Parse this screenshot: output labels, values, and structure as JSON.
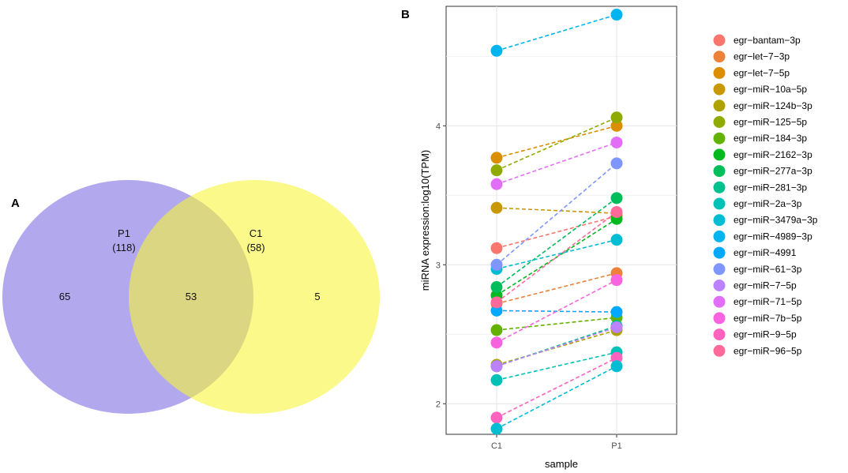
{
  "venn": {
    "panel_label": "A",
    "left_set": {
      "name": "P1",
      "total": "(118)",
      "only": "65",
      "color": "#9b8fe8"
    },
    "right_set": {
      "name": "C1",
      "total": "(58)",
      "only": "5",
      "color": "#f7f53a"
    },
    "overlap": "53"
  },
  "chart_data": {
    "type": "line",
    "panel_label": "B",
    "xlabel": "sample",
    "ylabel": "miRNA expression:log10(TPM)",
    "categories": [
      "C1",
      "P1"
    ],
    "ylim": [
      1.78,
      4.86
    ],
    "yticks": [
      "2",
      "3",
      "4"
    ],
    "grid": true,
    "legend_position": "right",
    "series": [
      {
        "name": "egr−bantam−3p",
        "values": [
          3.12,
          3.35
        ],
        "color": "#F8766D"
      },
      {
        "name": "egr−let−7−3p",
        "values": [
          2.72,
          2.94
        ],
        "color": "#EC8239"
      },
      {
        "name": "egr−let−7−5p",
        "values": [
          3.77,
          4.0
        ],
        "color": "#DB8E00"
      },
      {
        "name": "egr−miR−10a−5p",
        "values": [
          3.41,
          3.37
        ],
        "color": "#C79800"
      },
      {
        "name": "egr−miR−124b−3p",
        "values": [
          2.28,
          2.53
        ],
        "color": "#AEA200"
      },
      {
        "name": "egr−miR−125−5p",
        "values": [
          3.68,
          4.06
        ],
        "color": "#8FAA00"
      },
      {
        "name": "egr−miR−184−3p",
        "values": [
          2.53,
          2.62
        ],
        "color": "#64B200"
      },
      {
        "name": "egr−miR−2162−3p",
        "values": [
          2.78,
          3.33
        ],
        "color": "#00B81F"
      },
      {
        "name": "egr−miR−277a−3p",
        "values": [
          2.84,
          3.48
        ],
        "color": "#00BD5C"
      },
      {
        "name": "egr−miR−281−3p",
        "values": [
          2.27,
          2.56
        ],
        "color": "#00C08E"
      },
      {
        "name": "egr−miR−2a−3p",
        "values": [
          2.17,
          2.37
        ],
        "color": "#00C1B7"
      },
      {
        "name": "egr−miR−3479a−3p",
        "values": [
          2.97,
          3.18
        ],
        "color": "#00BDD4"
      },
      {
        "name": "egr−miR−4989−3p",
        "values": [
          4.54,
          4.8
        ],
        "color": "#00B4EF"
      },
      {
        "name": "egr−miR−4991",
        "values": [
          2.67,
          2.66
        ],
        "color": "#00A8FF"
      },
      {
        "name": "egr−miR−61−3p",
        "values": [
          3.0,
          3.73
        ],
        "color": "#7F96FF"
      },
      {
        "name": "egr−miR−7−5p",
        "values": [
          2.27,
          2.55
        ],
        "color": "#BC81FF"
      },
      {
        "name": "egr−miR−71−5p",
        "values": [
          3.58,
          3.88
        ],
        "color": "#E26EF7"
      },
      {
        "name": "egr−miR−7b−5p",
        "values": [
          2.44,
          2.89
        ],
        "color": "#F863DF"
      },
      {
        "name": "egr−miR−9−5p",
        "values": [
          1.9,
          2.33
        ],
        "color": "#FF62BF"
      },
      {
        "name": "egr−miR−96−5p",
        "values": [
          2.73,
          3.38
        ],
        "color": "#FF6A9A"
      }
    ],
    "extra_points": [
      {
        "category": "C1",
        "value": 1.82,
        "color": "#00BDD4"
      },
      {
        "category": "P1",
        "value": 2.27,
        "color": "#00BDD4"
      }
    ]
  }
}
